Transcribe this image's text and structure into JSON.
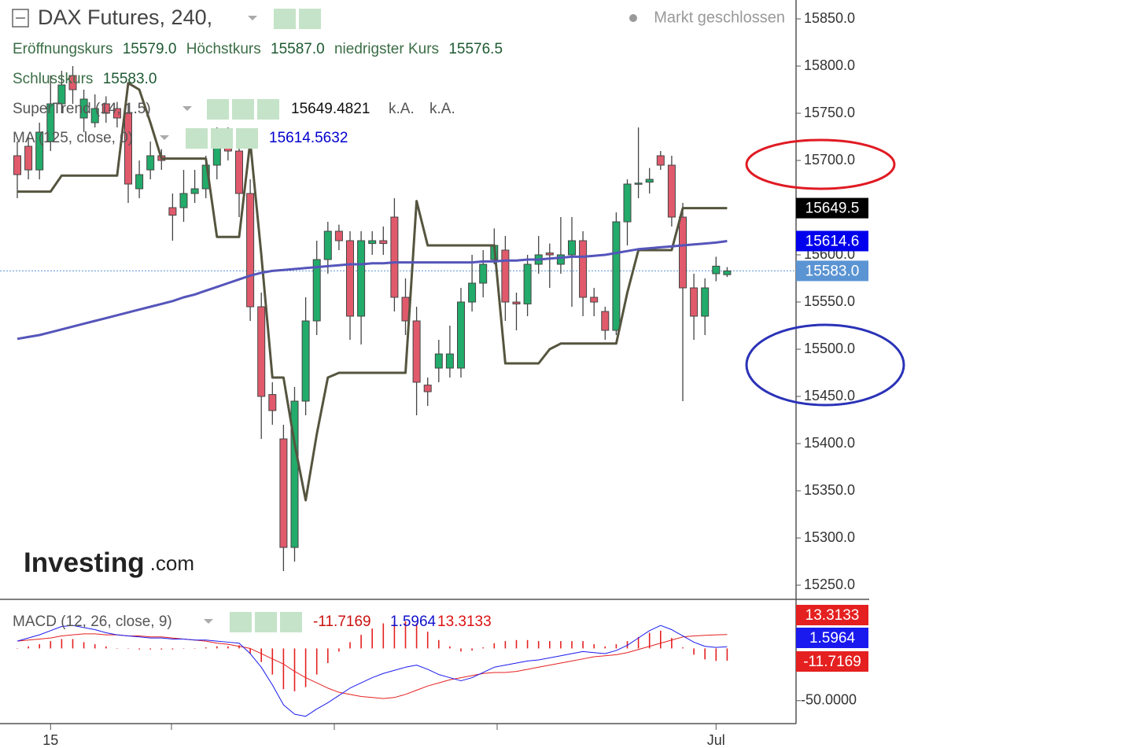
{
  "header": {
    "title": "DAX Futures, 240,",
    "status": "Markt geschlossen",
    "ohlc": [
      {
        "label": "Eröffnungskurs",
        "value": "15579.0"
      },
      {
        "label": "Höchstkurs",
        "value": "15587.0"
      },
      {
        "label": "niedrigster Kurs",
        "value": "15576.5"
      },
      {
        "label": "Schlusskurs",
        "value": "15583.0"
      }
    ]
  },
  "logo": {
    "brand": "Investing",
    "suffix": ".com"
  },
  "chart_data": [
    {
      "type": "candlestick",
      "categories": [
        null,
        null,
        null,
        "15",
        null,
        null,
        null,
        null,
        null,
        null,
        null,
        null,
        null,
        null,
        null,
        null,
        null,
        null,
        null,
        null,
        null,
        null,
        null,
        null,
        null,
        null,
        null,
        null,
        null,
        null,
        null,
        null,
        null,
        null,
        null,
        null,
        null,
        null,
        null,
        null,
        null,
        null,
        null,
        null,
        null,
        null,
        null,
        null,
        null,
        null,
        null,
        null,
        null,
        null,
        null,
        null,
        null,
        null,
        null,
        null,
        null,
        null,
        null,
        "Jul",
        null
      ],
      "open": [
        15705,
        15715,
        15690,
        15720,
        15760,
        15790,
        15745,
        15740,
        15760,
        15755,
        15750,
        15670,
        15690,
        15705,
        15650,
        15650,
        15665,
        15670,
        15695,
        15720,
        15710,
        15665,
        15545,
        15452,
        15405,
        15290,
        15445,
        15530,
        15595,
        15625,
        15615,
        15535,
        15612,
        15615,
        15640,
        15555,
        15530,
        15462,
        15480,
        15480,
        15480,
        15550,
        15570,
        15595,
        15605,
        15550,
        15548,
        15590,
        15602,
        15590,
        15600,
        15615,
        15555,
        15540,
        15520,
        15635,
        15675,
        15677,
        15705,
        15695,
        15640,
        15565,
        15535,
        15580,
        15579
      ],
      "high": [
        15720,
        15725,
        15740,
        15790,
        15795,
        15800,
        15775,
        15770,
        15768,
        15762,
        15760,
        15700,
        15720,
        15712,
        15665,
        15690,
        15690,
        15705,
        15735,
        15735,
        15725,
        15680,
        15560,
        15465,
        15420,
        15460,
        15555,
        15615,
        15635,
        15632,
        15625,
        15625,
        15625,
        15630,
        15660,
        15575,
        15545,
        15470,
        15510,
        15525,
        15565,
        15600,
        15605,
        15628,
        15620,
        15560,
        15600,
        15620,
        15612,
        15640,
        15640,
        15625,
        15565,
        15545,
        15645,
        15680,
        15735,
        15692,
        15710,
        15705,
        15655,
        15580,
        15575,
        15598,
        15587
      ],
      "low": [
        15660,
        15680,
        15680,
        15710,
        15750,
        15760,
        15730,
        15735,
        15740,
        15735,
        15655,
        15660,
        15680,
        15690,
        15615,
        15635,
        15655,
        15660,
        15680,
        15700,
        15640,
        15530,
        15405,
        15420,
        15265,
        15275,
        15430,
        15515,
        15580,
        15605,
        15510,
        15505,
        15600,
        15600,
        15540,
        15515,
        15430,
        15440,
        15465,
        15470,
        15470,
        15540,
        15555,
        15590,
        15530,
        15520,
        15535,
        15580,
        15565,
        15580,
        15545,
        15535,
        15535,
        15510,
        15515,
        15610,
        15660,
        15665,
        15690,
        15630,
        15445,
        15510,
        15515,
        15572,
        15576.5
      ],
      "close": [
        15685,
        15690,
        15730,
        15760,
        15780,
        15775,
        15765,
        15755,
        15750,
        15745,
        15675,
        15685,
        15705,
        15700,
        15642,
        15665,
        15670,
        15695,
        15720,
        15710,
        15665,
        15545,
        15450,
        15435,
        15290,
        15445,
        15530,
        15595,
        15625,
        15615,
        15535,
        15615,
        15615,
        15612,
        15555,
        15530,
        15465,
        15455,
        15495,
        15495,
        15550,
        15570,
        15590,
        15610,
        15550,
        15548,
        15590,
        15600,
        15600,
        15600,
        15615,
        15555,
        15550,
        15520,
        15635,
        15675,
        15676,
        15680,
        15695,
        15640,
        15565,
        15535,
        15565,
        15588,
        15583
      ],
      "up_color": "#22ab6a",
      "down_color": "#e05a6c",
      "ylim": [
        15235,
        15870
      ],
      "yticks": [
        {
          "value": 15250,
          "label": "15250.0"
        },
        {
          "value": 15300,
          "label": "15300.0"
        },
        {
          "value": 15350,
          "label": "15350.0"
        },
        {
          "value": 15400,
          "label": "15400.0"
        },
        {
          "value": 15450,
          "label": "15450.0"
        },
        {
          "value": 15500,
          "label": "15500.0"
        },
        {
          "value": 15550,
          "label": "15550.0"
        },
        {
          "value": 15600,
          "label": "15600.0"
        },
        {
          "value": 15650,
          "label": "15650.0"
        },
        {
          "value": 15700,
          "label": "15700.0"
        },
        {
          "value": 15750,
          "label": "15750.0"
        },
        {
          "value": 15800,
          "label": "15800.0"
        },
        {
          "value": 15850,
          "label": "15850.0"
        }
      ],
      "overlays": [
        {
          "name": "SuperTrend (14, 1.5)",
          "color": "#55553f",
          "extra": [
            "k.A.",
            "k.A."
          ],
          "values": [
            15667,
            15667,
            15667,
            15667,
            15684,
            15684,
            15684,
            15684,
            15684,
            15684,
            15782,
            15775,
            15740,
            15702,
            15702,
            15702,
            15702,
            15702,
            15619,
            15619,
            15619,
            15720,
            15600,
            15470,
            15470,
            15400,
            15340,
            15410,
            15470,
            15475,
            15475,
            15475,
            15475,
            15475,
            15475,
            15475,
            15657,
            15610,
            15610,
            15610,
            15610,
            15610,
            15610,
            15610,
            15485,
            15485,
            15485,
            15485,
            15500,
            15506,
            15506,
            15506,
            15506,
            15506,
            15506,
            15560,
            15605,
            15605,
            15605,
            15605,
            15649.4821,
            15649.4821,
            15649.4821,
            15649.4821,
            15649.4821
          ]
        },
        {
          "name": "MA (125, close, 0)",
          "color": "#5555bb",
          "values": [
            15511,
            15513,
            15515,
            15518,
            15521,
            15524,
            15527,
            15530,
            15533,
            15536,
            15539,
            15542,
            15545,
            15548,
            15551,
            15555,
            15558,
            15562,
            15566,
            15570,
            15574,
            15578,
            15581,
            15583,
            15584,
            15585,
            15586,
            15587,
            15588,
            15589,
            15590,
            15590,
            15591,
            15591,
            15592,
            15592,
            15592,
            15592,
            15592,
            15592,
            15592,
            15592,
            15593,
            15593,
            15594,
            15594,
            15595,
            15595,
            15596,
            15597,
            15598,
            15598,
            15599,
            15600,
            15602,
            15604,
            15606,
            15607,
            15608,
            15609,
            15610,
            15611,
            15612,
            15613,
            15614.5632
          ]
        }
      ],
      "price_tags": [
        {
          "value": 15649.5,
          "label": "15649.5",
          "color": "#000000"
        },
        {
          "value": 15614.6,
          "label": "15614.6",
          "color": "#0000ee"
        },
        {
          "value": 15583.0,
          "label": "15583.0",
          "color": "#5b94d3"
        }
      ]
    },
    {
      "type": "macd",
      "name": "MACD (12, 26, close, 9)",
      "ylim": [
        -72,
        47
      ],
      "yticks": [
        {
          "value": -50,
          "label": "-50.0000"
        }
      ],
      "histogram": {
        "color": "#e52020",
        "values": [
          0,
          2,
          4,
          7,
          9,
          9,
          6,
          4,
          2,
          0,
          0,
          -1,
          -1,
          -1,
          -1,
          0,
          0,
          1,
          2,
          2,
          3,
          -5,
          -13,
          -25,
          -39,
          -41,
          -37,
          -25,
          -14,
          -3,
          6,
          13,
          19,
          24,
          26,
          26,
          24,
          16,
          8,
          2,
          -3,
          -2,
          1,
          5,
          7,
          8,
          8,
          7,
          7,
          7,
          7,
          7,
          4,
          2,
          4,
          7,
          11,
          15,
          17,
          10,
          1,
          -6,
          -10.5,
          -12,
          -11.7169
        ]
      },
      "macd": {
        "color": "#1a1aee",
        "values": [
          7,
          10,
          13,
          17,
          21,
          22,
          20,
          18,
          15,
          13,
          12,
          11,
          10,
          10,
          9,
          9,
          8,
          8,
          7,
          6,
          5,
          -5,
          -18,
          -35,
          -54,
          -63,
          -65,
          -58,
          -52,
          -45,
          -38,
          -33,
          -28,
          -24,
          -21,
          -18,
          -16,
          -20,
          -25,
          -28,
          -31,
          -28,
          -23,
          -18,
          -16,
          -14,
          -12,
          -11,
          -9,
          -7,
          -5,
          -3,
          -4,
          -5,
          -2,
          3,
          10,
          17,
          22,
          18,
          12,
          6,
          2,
          1,
          1.5964
        ]
      },
      "signal": {
        "color": "#e52020",
        "values": [
          7,
          8,
          9,
          10,
          12,
          13,
          14,
          14,
          13,
          13,
          12,
          12,
          11,
          11,
          10,
          9,
          8,
          7,
          5,
          4,
          2,
          0,
          -5,
          -10,
          -15,
          -22,
          -28,
          -33,
          -38,
          -42,
          -44,
          -46,
          -47,
          -48,
          -47,
          -44,
          -40,
          -36,
          -33,
          -30,
          -28,
          -26,
          -24,
          -23,
          -23,
          -22,
          -20,
          -18,
          -16,
          -14,
          -12,
          -10,
          -8,
          -7,
          -6,
          -4,
          -1,
          2,
          5,
          8,
          11,
          12,
          12.5,
          13,
          13.3133
        ]
      }
    }
  ]
}
